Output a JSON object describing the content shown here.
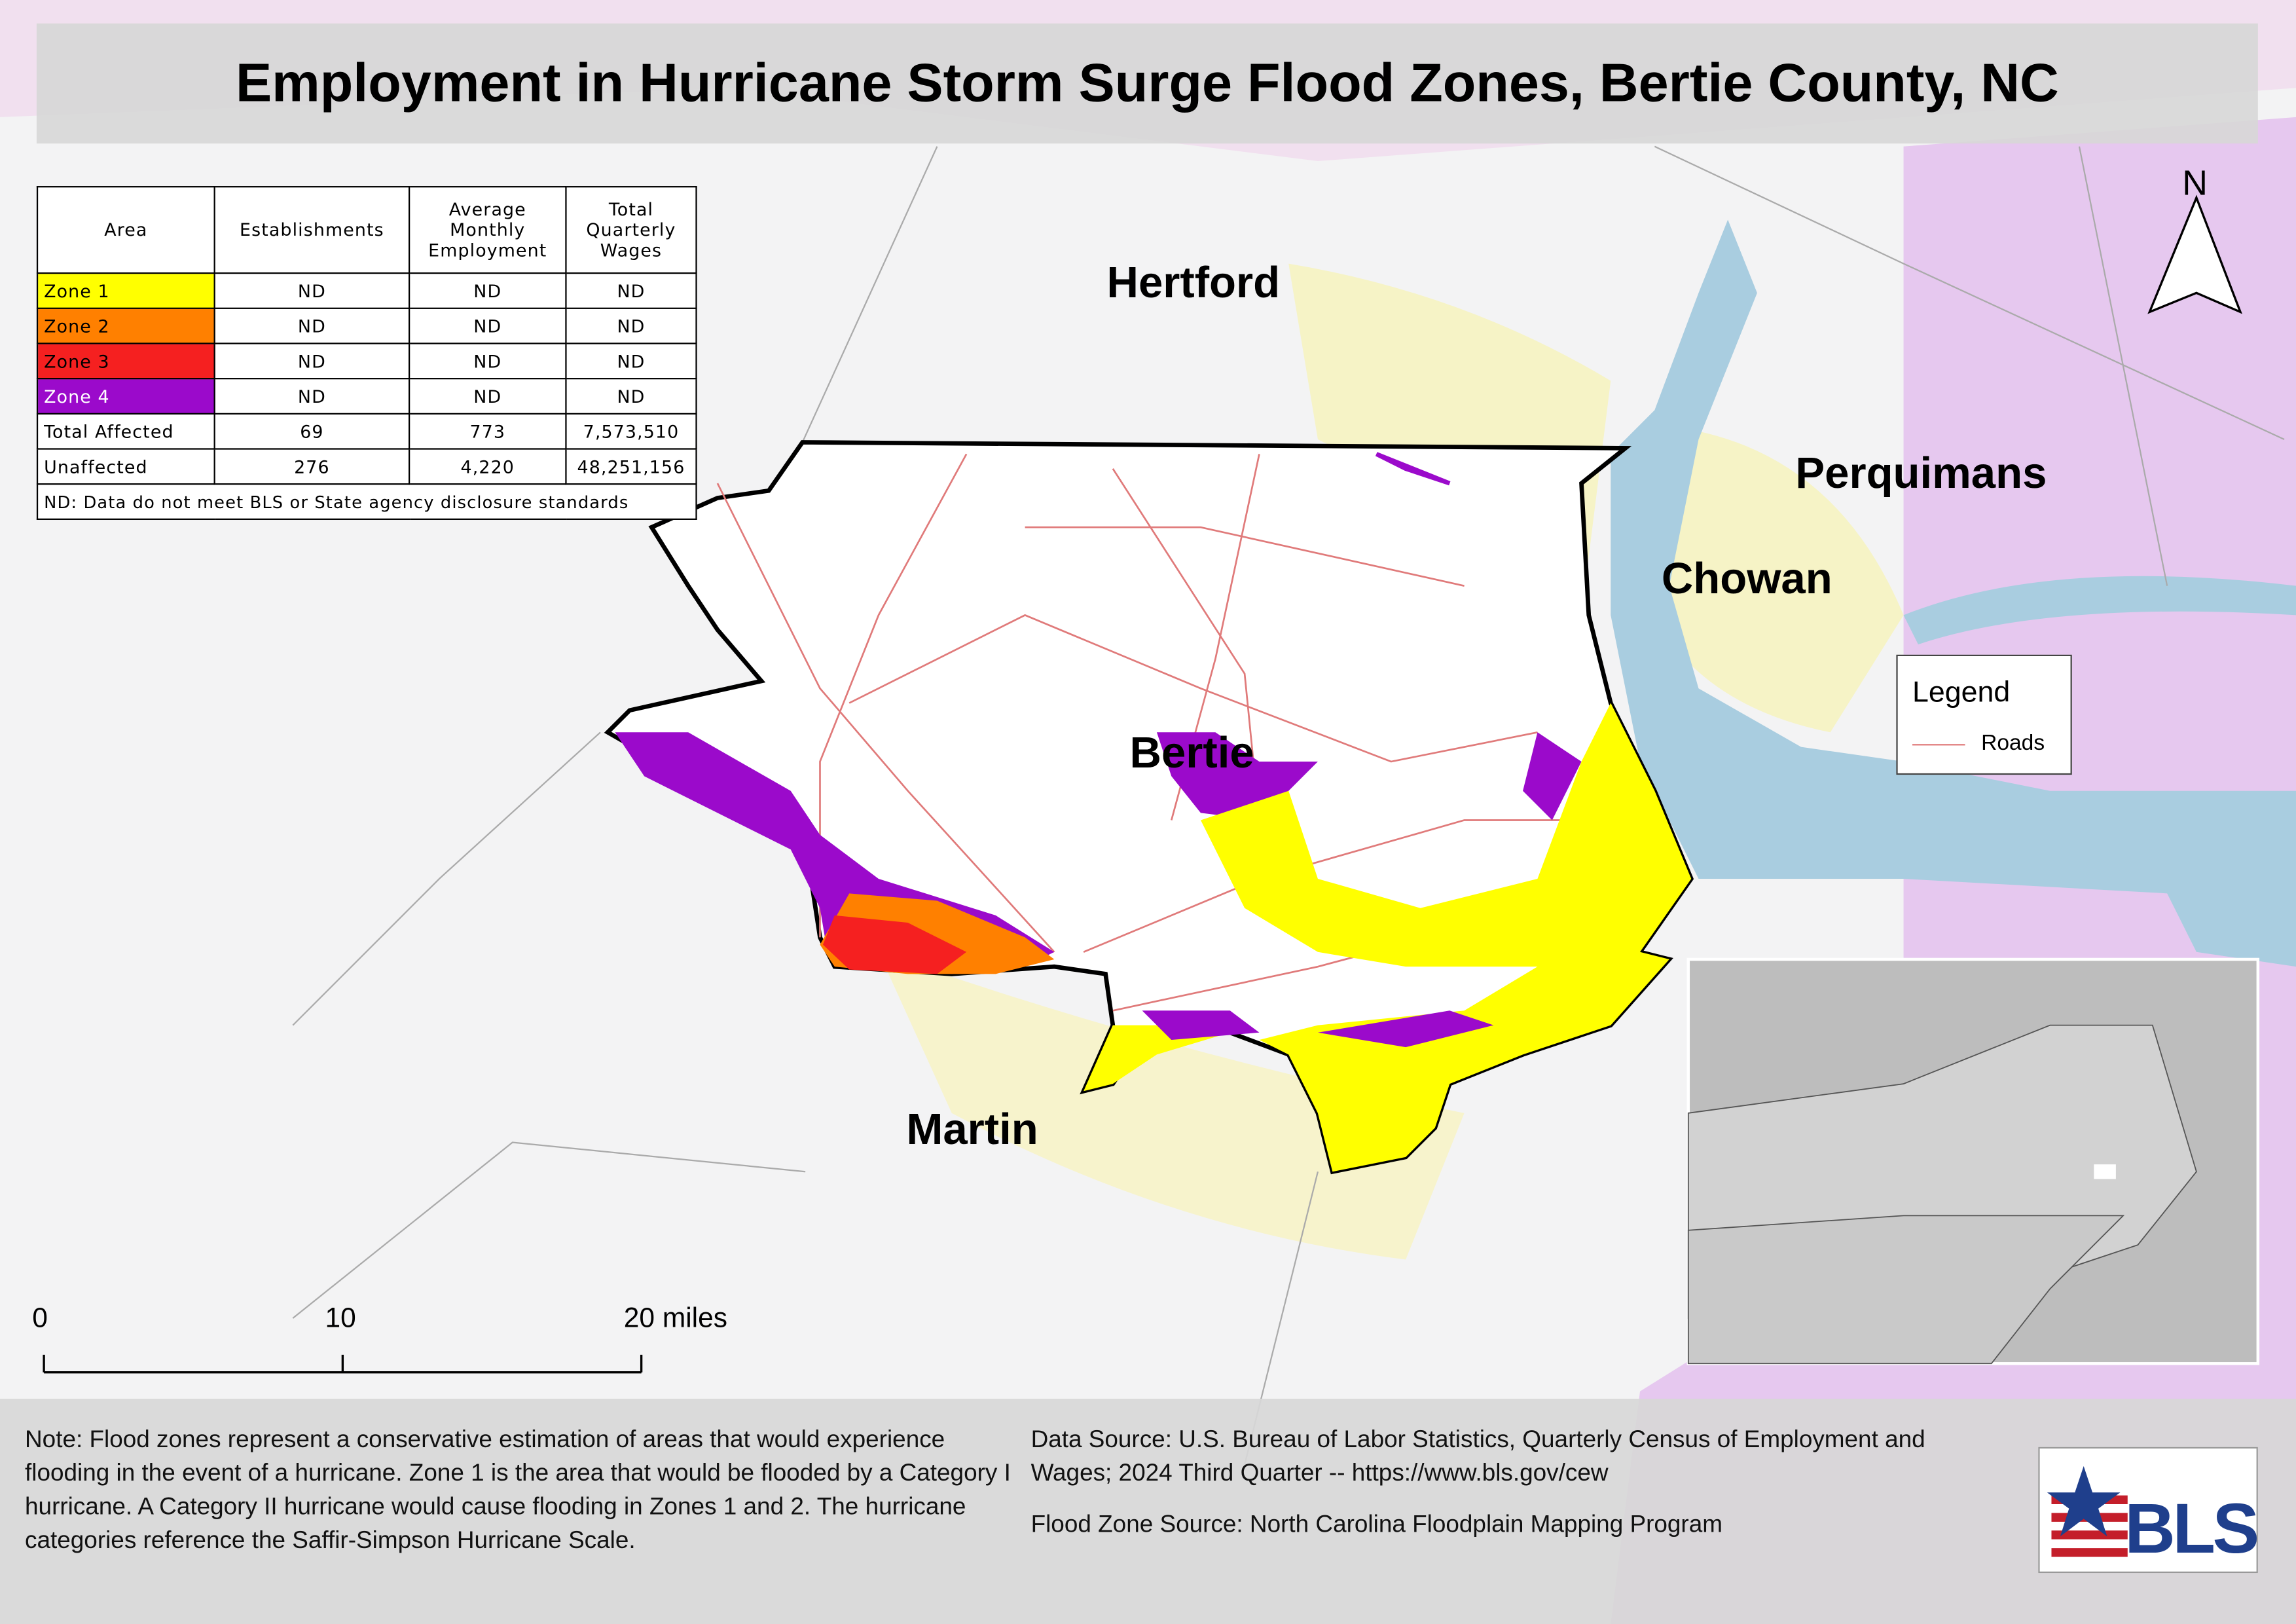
{
  "title": "Employment in Hurricane Storm Surge Flood Zones, Bertie County, NC",
  "table": {
    "header": [
      "Area",
      "Establishments",
      "Average Monthly Employment",
      "Total Quarterly Wages"
    ],
    "rows": [
      [
        "Zone 1",
        "ND",
        "ND",
        "ND"
      ],
      [
        "Zone 2",
        "ND",
        "ND",
        "ND"
      ],
      [
        "Zone 3",
        "ND",
        "ND",
        "ND"
      ],
      [
        "Zone 4",
        "ND",
        "ND",
        "ND"
      ],
      [
        "Total Affected",
        "69",
        "773",
        "7,573,510"
      ],
      [
        "Unaffected",
        "276",
        "4,220",
        "48,251,156"
      ]
    ],
    "footnote": "ND: Data do not meet BLS or State agency disclosure standards"
  },
  "counties": [
    "Hertford",
    "Perquimans",
    "Chowan",
    "Bertie",
    "Martin"
  ],
  "north": "N",
  "legend": {
    "title": "Legend",
    "items": [
      "Roads"
    ]
  },
  "scale_bar": [
    "0",
    "10",
    "20 miles"
  ],
  "notes": {
    "note": "Note: Flood zones represent a conservative estimation of areas that would experience flooding in the event of a hurricane. Zone 1 is the area that would be flooded by a Category I hurricane. A Category II hurricane would cause flooding in Zones 1 and 2. The hurricane categories reference the Saffir-Simpson Hurricane Scale.",
    "data_source": "Data Source: U.S. Bureau of Labor Statistics, Quarterly Census of Employment and Wages; 2024 Third Quarter -- https://www.bls.gov/cew",
    "flood_zone_source": "Flood Zone Source: North Carolina Floodplain Mapping Program"
  },
  "logo": "BLS"
}
